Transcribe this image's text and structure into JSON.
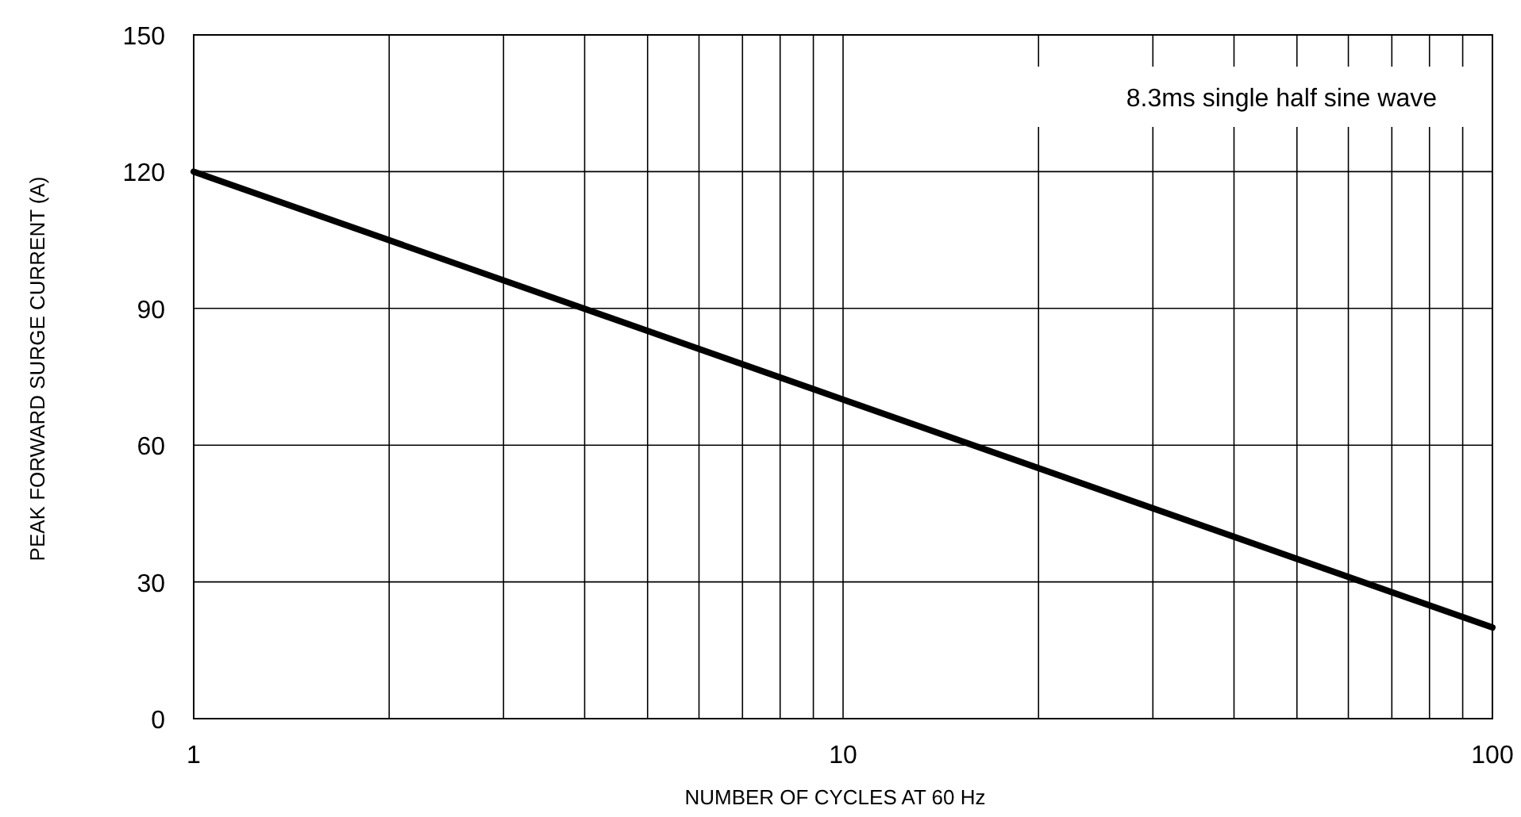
{
  "chart_data": {
    "type": "line",
    "xlabel": "NUMBER OF CYCLES AT 60 Hz",
    "ylabel": "PEAK FORWARD SURGE CURRENT (A)",
    "annotations": [
      "8.3ms single half sine wave"
    ],
    "log": "x",
    "grid": true,
    "marker": "none",
    "line_style": "solid",
    "xlim": [
      1,
      100
    ],
    "xticks": [
      1,
      {
        "value": 2,
        "label": null
      },
      {
        "value": 3,
        "label": null
      },
      {
        "value": 4,
        "label": null
      },
      {
        "value": 5,
        "label": null
      },
      {
        "value": 6,
        "label": null
      },
      {
        "value": 7,
        "label": null
      },
      {
        "value": 8,
        "label": null
      },
      {
        "value": 9,
        "label": null
      },
      10,
      {
        "value": 20,
        "label": null
      },
      {
        "value": 30,
        "label": null
      },
      {
        "value": 40,
        "label": null
      },
      {
        "value": 50,
        "label": null
      },
      {
        "value": 60,
        "label": null
      },
      {
        "value": 70,
        "label": null
      },
      {
        "value": 80,
        "label": null
      },
      {
        "value": 90,
        "label": null
      },
      100
    ],
    "ylim": [
      0,
      150
    ],
    "yticks": [
      0,
      30,
      60,
      90,
      120,
      150
    ],
    "series": [
      {
        "color": "#000000",
        "x": [
          1,
          10,
          100
        ],
        "values": [
          120,
          70,
          20
        ]
      }
    ]
  }
}
